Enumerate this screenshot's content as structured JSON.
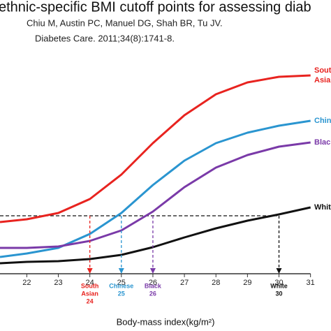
{
  "chart_data": {
    "type": "line",
    "title": "ethnic-specific BMI cutoff points for assessing diab",
    "subtitle_lines": [
      "Chiu M, Austin PC, Manuel DG, Shah BR, Tu JV.",
      "Diabetes Care. 2011;34(8):1741-8."
    ],
    "xlabel": "Body-mass index(kg/m²)",
    "x": [
      21.15,
      22,
      23,
      24,
      25,
      26,
      27,
      28,
      29,
      30,
      31
    ],
    "xlim": [
      21.15,
      31.65
    ],
    "xticks": [
      22,
      23,
      24,
      25,
      26,
      27,
      28,
      29,
      30,
      31
    ],
    "ylim": [
      0,
      300
    ],
    "series": [
      {
        "name": "South Asian",
        "name_lines": [
          "South",
          "Asian"
        ],
        "color": "#e8231f",
        "values": [
          74,
          78,
          87,
          107,
          142,
          187,
          227,
          257,
          274,
          282,
          284
        ]
      },
      {
        "name": "Chinese",
        "name_lines": [
          "Chinese"
        ],
        "color": "#2a95d0",
        "values": [
          24,
          29,
          37,
          57,
          87,
          127,
          162,
          187,
          202,
          212,
          219
        ]
      },
      {
        "name": "Black",
        "name_lines": [
          "Black"
        ],
        "color": "#7a3aa8",
        "values": [
          37,
          37,
          39,
          47,
          62,
          89,
          124,
          152,
          170,
          182,
          188
        ]
      },
      {
        "name": "White",
        "name_lines": [
          "White"
        ],
        "color": "#111111",
        "values": [
          15,
          17,
          18,
          21,
          27,
          38,
          52,
          65,
          76,
          85,
          95
        ]
      }
    ],
    "threshold": 83,
    "cutoffs": [
      {
        "label_lines": [
          "South",
          "Asian"
        ],
        "x": 24,
        "color": "#e8231f"
      },
      {
        "label_lines": [
          "Chinese"
        ],
        "x": 25,
        "color": "#2a95d0"
      },
      {
        "label_lines": [
          "Black"
        ],
        "x": 26,
        "color": "#7a3aa8"
      },
      {
        "label_lines": [
          "White"
        ],
        "x": 30,
        "color": "#111111"
      }
    ]
  }
}
